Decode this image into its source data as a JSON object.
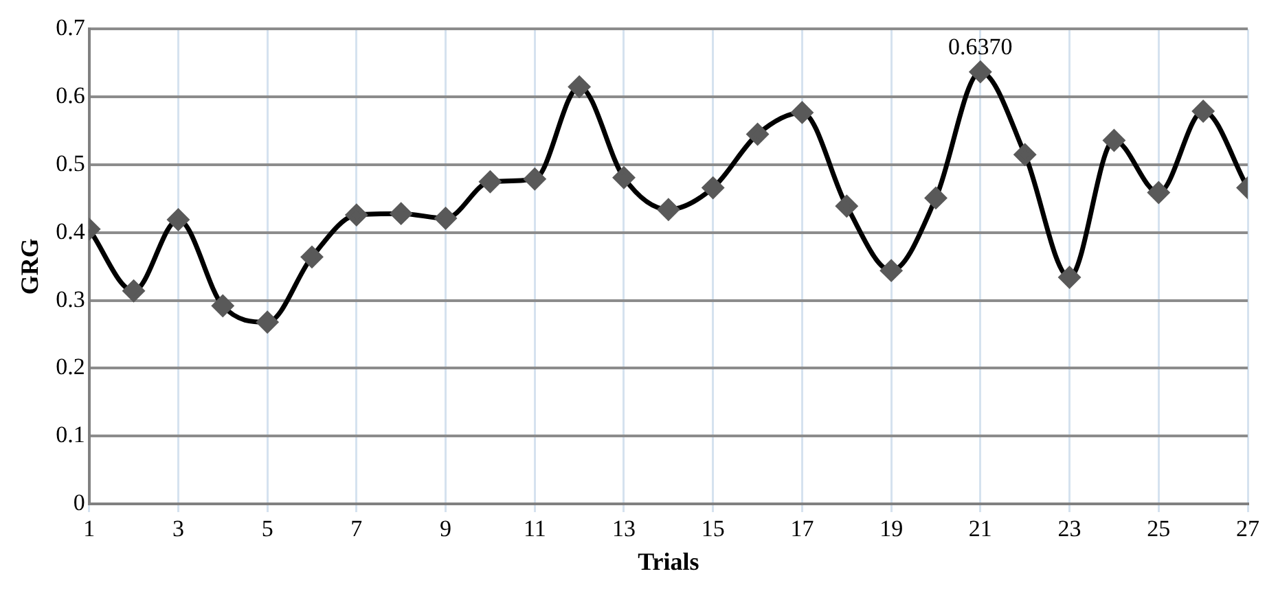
{
  "chart_data": {
    "type": "line",
    "xlabel": "Trials",
    "ylabel": "GRG",
    "x": [
      1,
      2,
      3,
      4,
      5,
      6,
      7,
      8,
      9,
      10,
      11,
      12,
      13,
      14,
      15,
      16,
      17,
      18,
      19,
      20,
      21,
      22,
      23,
      24,
      25,
      26,
      27
    ],
    "series": [
      {
        "color": "#000000",
        "values": [
          0.405,
          0.314,
          0.419,
          0.292,
          0.268,
          0.364,
          0.426,
          0.428,
          0.421,
          0.475,
          0.479,
          0.615,
          0.481,
          0.434,
          0.466,
          0.545,
          0.577,
          0.439,
          0.344,
          0.451,
          0.637,
          0.515,
          0.334,
          0.536,
          0.459,
          0.579,
          0.466
        ]
      }
    ],
    "xlim": [
      1,
      27
    ],
    "xticks": [
      1,
      3,
      5,
      7,
      9,
      11,
      13,
      15,
      17,
      19,
      21,
      23,
      25,
      27
    ],
    "ylim": [
      0,
      0.7
    ],
    "yticks": [
      0,
      0.1,
      0.2,
      0.3,
      0.4,
      0.5,
      0.6,
      0.7
    ],
    "annotations": [
      {
        "text": "0.6370",
        "x": 21,
        "y": 0.637
      }
    ],
    "grid": true,
    "legend": false,
    "marker": "diamond",
    "line_style": "solid"
  }
}
